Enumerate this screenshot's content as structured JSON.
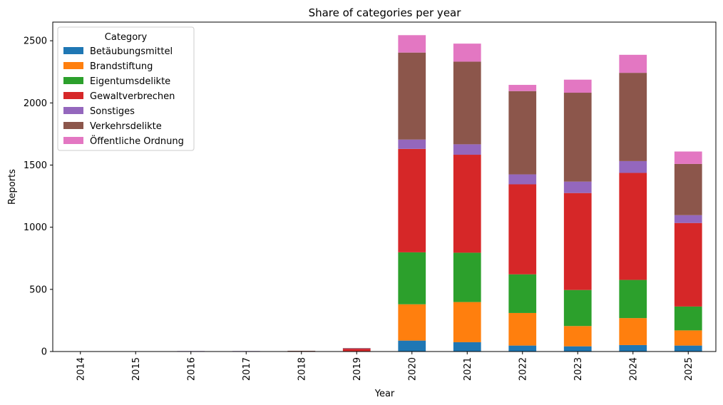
{
  "chart_data": {
    "type": "bar",
    "stacked": true,
    "title": "Share of categories per year",
    "xlabel": "Year",
    "ylabel": "Reports",
    "ylim": [
      0,
      2650
    ],
    "yticks": [
      0,
      500,
      1000,
      1500,
      2000,
      2500
    ],
    "categories": [
      "2014",
      "2015",
      "2016",
      "2017",
      "2018",
      "2019",
      "2020",
      "2021",
      "2022",
      "2023",
      "2024",
      "2025"
    ],
    "legend": {
      "title": "Category",
      "placement": "upper-left"
    },
    "series": [
      {
        "name": "Betäubungsmittel",
        "color": "#1f77b4",
        "values": [
          0,
          0,
          0,
          0,
          0,
          0,
          88,
          75,
          48,
          42,
          52,
          48
        ]
      },
      {
        "name": "Brandstiftung",
        "color": "#ff7f0e",
        "values": [
          0,
          0,
          0,
          0,
          0,
          0,
          292,
          323,
          262,
          163,
          217,
          122
        ]
      },
      {
        "name": "Eigentumsdelikte",
        "color": "#2ca02c",
        "values": [
          1,
          1,
          0,
          1,
          2,
          3,
          418,
          397,
          311,
          290,
          307,
          192
        ]
      },
      {
        "name": "Gewaltverbrechen",
        "color": "#d62728",
        "values": [
          1,
          1,
          1,
          1,
          3,
          20,
          832,
          788,
          724,
          780,
          861,
          672
        ]
      },
      {
        "name": "Sonstiges",
        "color": "#9467bd",
        "values": [
          0,
          0,
          3,
          2,
          0,
          2,
          75,
          84,
          80,
          92,
          95,
          63
        ]
      },
      {
        "name": "Verkehrsdelikte",
        "color": "#8c564b",
        "values": [
          0,
          0,
          0,
          0,
          1,
          3,
          700,
          665,
          670,
          715,
          710,
          412
        ]
      },
      {
        "name": "Öffentliche Ordnung",
        "color": "#e377c2",
        "values": [
          0,
          0,
          0,
          0,
          0,
          0,
          140,
          145,
          50,
          105,
          145,
          100
        ]
      }
    ]
  }
}
